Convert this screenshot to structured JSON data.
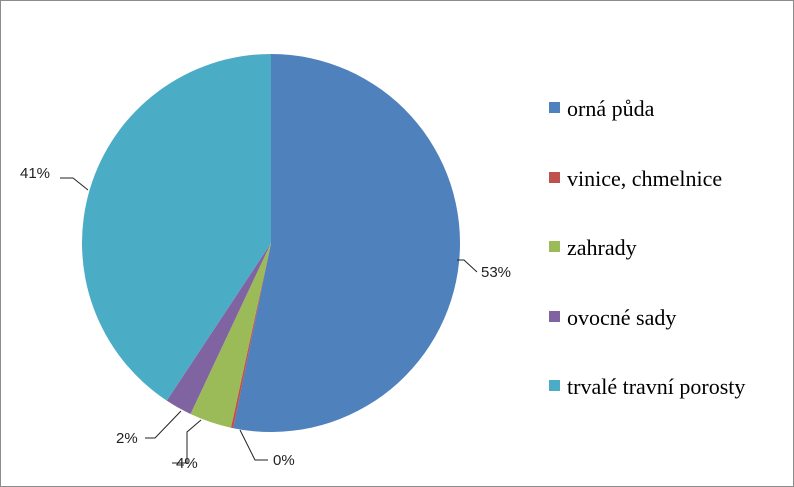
{
  "chart_data": {
    "type": "pie",
    "categories": [
      "orná půda",
      "vinice, chmelnice",
      "zahrady",
      "ovocné sady",
      "trvalé travní porosty"
    ],
    "values": [
      53.2,
      0.2,
      3.6,
      2.3,
      40.7
    ],
    "value_labels": [
      "53%",
      "0%",
      "4%",
      "2%",
      "41%"
    ],
    "colors": [
      "#4f81bd",
      "#c0504d",
      "#9bbb59",
      "#8064a2",
      "#4bacc6"
    ],
    "legend_position": "right",
    "start_angle_deg": 90,
    "direction": "clockwise"
  }
}
